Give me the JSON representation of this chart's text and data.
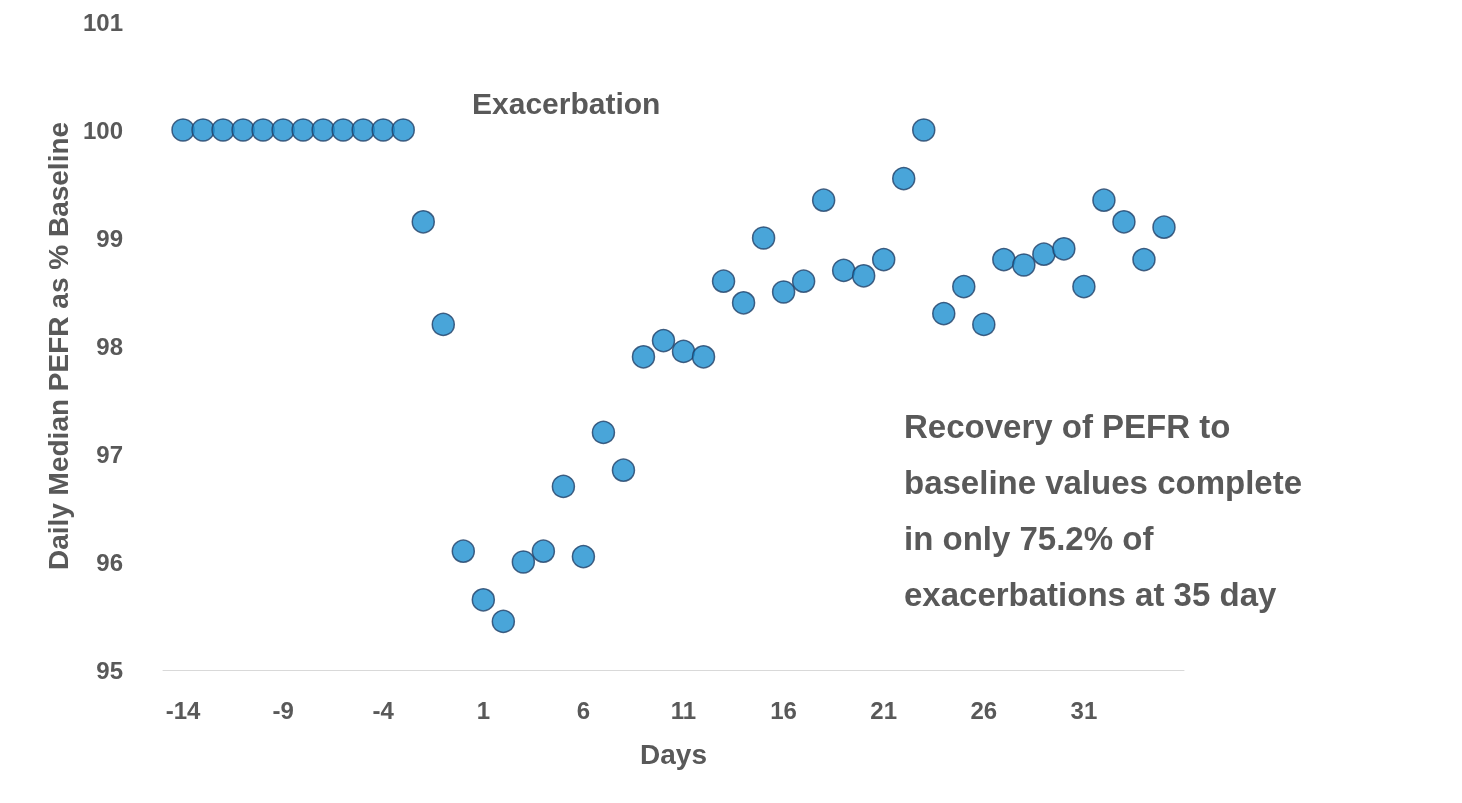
{
  "chart_data": {
    "type": "scatter",
    "xlabel": "Days",
    "ylabel": "Daily Median PEFR as % Baseline",
    "x": [
      -14,
      -13,
      -12,
      -11,
      -10,
      -9,
      -8,
      -7,
      -6,
      -5,
      -4,
      -3,
      -2,
      -1,
      0,
      1,
      2,
      3,
      4,
      5,
      6,
      7,
      8,
      9,
      10,
      11,
      12,
      13,
      14,
      15,
      16,
      17,
      18,
      19,
      20,
      21,
      22,
      23,
      24,
      25,
      26,
      27,
      28,
      29,
      30,
      31,
      32,
      33,
      34,
      35
    ],
    "series": [
      {
        "color": "#1b8fd0",
        "values": [
          100,
          100,
          100,
          100,
          100,
          100,
          100,
          100,
          100,
          100,
          100,
          100,
          99.15,
          98.2,
          96.1,
          95.65,
          95.45,
          96.0,
          96.1,
          96.7,
          96.05,
          97.2,
          96.85,
          97.9,
          98.05,
          97.95,
          97.9,
          98.6,
          98.4,
          99.0,
          98.5,
          98.6,
          99.35,
          98.7,
          98.65,
          98.8,
          99.55,
          100.0,
          98.3,
          98.55,
          98.2,
          98.8,
          98.75,
          98.85,
          98.9,
          98.55,
          99.35,
          99.15,
          98.8,
          99.1
        ]
      }
    ],
    "xlim": [
      -15,
      36
    ],
    "xticks": [
      -14,
      -9,
      -4,
      1,
      6,
      11,
      16,
      21,
      26,
      31
    ],
    "ylim": [
      95,
      101
    ],
    "yticks": [
      95,
      96,
      97,
      98,
      99,
      100,
      101
    ],
    "grid": false,
    "marker": "circle",
    "annotations": [
      "Exacerbation",
      "Recovery of PEFR to\nbaseline values complete\nin only 75.2% of\nexacerbations at 35 day"
    ]
  }
}
